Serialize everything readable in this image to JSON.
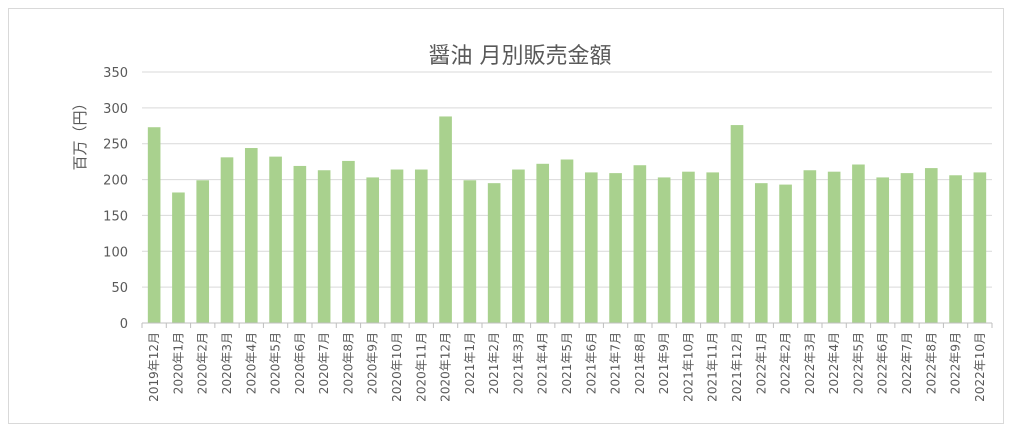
{
  "chart_data": {
    "type": "bar",
    "title": "醤油 月別販売金額",
    "xlabel": "",
    "ylabel": "百万（円）",
    "ylim": [
      0,
      350
    ],
    "yticks": [
      0,
      50,
      100,
      150,
      200,
      250,
      300,
      350
    ],
    "grid": true,
    "bar_color": "#a9d18e",
    "categories": [
      "2019年12月",
      "2020年1月",
      "2020年2月",
      "2020年3月",
      "2020年4月",
      "2020年5月",
      "2020年6月",
      "2020年7月",
      "2020年8月",
      "2020年9月",
      "2020年10月",
      "2020年11月",
      "2020年12月",
      "2021年1月",
      "2021年2月",
      "2021年3月",
      "2021年4月",
      "2021年5月",
      "2021年6月",
      "2021年7月",
      "2021年8月",
      "2021年9月",
      "2021年10月",
      "2021年11月",
      "2021年12月",
      "2022年1月",
      "2022年2月",
      "2022年3月",
      "2022年4月",
      "2022年5月",
      "2022年6月",
      "2022年7月",
      "2022年8月",
      "2022年9月",
      "2022年10月"
    ],
    "values": [
      273,
      182,
      199,
      231,
      244,
      232,
      219,
      213,
      226,
      203,
      214,
      214,
      288,
      199,
      195,
      214,
      222,
      228,
      210,
      209,
      220,
      203,
      211,
      210,
      276,
      195,
      193,
      213,
      211,
      221,
      203,
      209,
      216,
      206,
      210
    ]
  }
}
